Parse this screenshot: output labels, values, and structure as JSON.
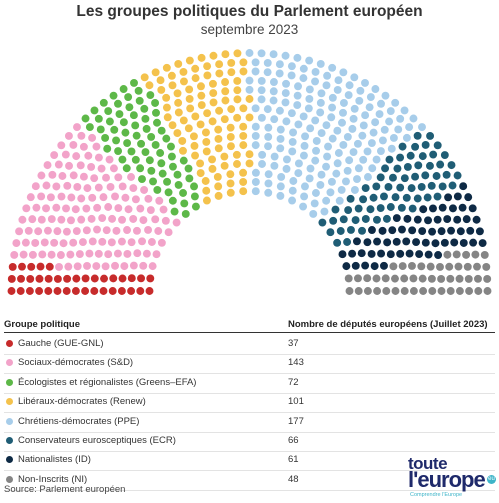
{
  "title": "Les groupes politiques du Parlement européen",
  "subtitle": "septembre 2023",
  "legend": {
    "group_header": "Groupe politique",
    "value_header": "Nombre de députés européens (Juillet 2023)"
  },
  "chart_data": {
    "type": "parliament",
    "title": "Les groupes politiques du Parlement européen",
    "subtitle": "septembre 2023",
    "total": 705,
    "series": [
      {
        "name": "Gauche (GUE-GNL)",
        "value": 37,
        "color": "#c72b2b"
      },
      {
        "name": "Sociaux-démocrates (S&D)",
        "value": 143,
        "color": "#f2a3c9"
      },
      {
        "name": "Écologistes et régionalistes (Greens–EFA)",
        "value": 72,
        "color": "#5db848"
      },
      {
        "name": "Libéraux-démocrates (Renew)",
        "value": 101,
        "color": "#f4c24c"
      },
      {
        "name": "Chrétiens-démocrates (PPE)",
        "value": 177,
        "color": "#a7cdea"
      },
      {
        "name": "Conservateurs eurosceptiques (ECR)",
        "value": 66,
        "color": "#1f5d75"
      },
      {
        "name": "Nationalistes (ID)",
        "value": 61,
        "color": "#0e2a45"
      },
      {
        "name": "Non-Inscrits (NI)",
        "value": 48,
        "color": "#858585"
      }
    ]
  },
  "source": "Source: Parlement européen",
  "logo": {
    "line1": "toute",
    "line2": "l'europe",
    "badge": "eu",
    "tagline": "Comprendre l'Europe"
  }
}
